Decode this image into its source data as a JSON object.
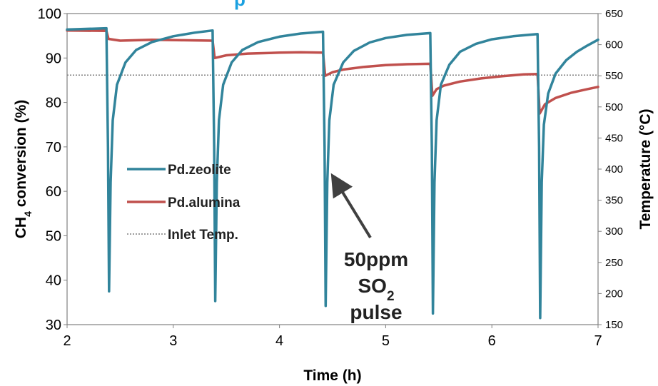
{
  "chart_data": {
    "type": "line",
    "title_fragment": "p",
    "xlabel": "Time (h)",
    "ylabel": {
      "prefix": "CH",
      "subscript": "4",
      "suffix": " conversion (%)"
    },
    "y2label": "Temperature (°C)",
    "xlim": [
      2,
      7
    ],
    "ylim": [
      30,
      100
    ],
    "y2lim": [
      150,
      650
    ],
    "xticks": [
      "2",
      "3",
      "4",
      "5",
      "6",
      "7"
    ],
    "yticks": [
      "30",
      "40",
      "50",
      "60",
      "70",
      "80",
      "90",
      "100"
    ],
    "y2ticks": [
      "150",
      "200",
      "250",
      "300",
      "350",
      "400",
      "450",
      "500",
      "550",
      "600",
      "650"
    ],
    "legend": {
      "position": "center-left"
    },
    "series": [
      {
        "name": "Pd.zeolite",
        "color": "#31849b",
        "style": "solid",
        "points": [
          [
            2.0,
            96.4
          ],
          [
            2.37,
            96.7
          ],
          [
            2.385,
            70
          ],
          [
            2.395,
            37.5
          ],
          [
            2.41,
            62
          ],
          [
            2.43,
            76
          ],
          [
            2.47,
            84
          ],
          [
            2.55,
            89
          ],
          [
            2.65,
            91.8
          ],
          [
            2.8,
            93.6
          ],
          [
            3.0,
            94.9
          ],
          [
            3.2,
            95.7
          ],
          [
            3.37,
            96.2
          ],
          [
            3.385,
            70
          ],
          [
            3.395,
            35.3
          ],
          [
            3.41,
            62
          ],
          [
            3.43,
            76
          ],
          [
            3.47,
            84
          ],
          [
            3.55,
            89
          ],
          [
            3.65,
            91.8
          ],
          [
            3.8,
            93.6
          ],
          [
            4.0,
            94.8
          ],
          [
            4.2,
            95.5
          ],
          [
            4.41,
            95.9
          ],
          [
            4.425,
            70
          ],
          [
            4.435,
            34.2
          ],
          [
            4.45,
            62
          ],
          [
            4.47,
            76
          ],
          [
            4.51,
            84
          ],
          [
            4.6,
            89
          ],
          [
            4.7,
            91.6
          ],
          [
            4.85,
            93.5
          ],
          [
            5.0,
            94.5
          ],
          [
            5.2,
            95.2
          ],
          [
            5.42,
            95.6
          ],
          [
            5.435,
            70
          ],
          [
            5.445,
            32.5
          ],
          [
            5.46,
            62
          ],
          [
            5.48,
            76
          ],
          [
            5.52,
            84
          ],
          [
            5.6,
            88.5
          ],
          [
            5.7,
            91.4
          ],
          [
            5.85,
            93.2
          ],
          [
            6.0,
            94.2
          ],
          [
            6.2,
            94.9
          ],
          [
            6.43,
            95.4
          ],
          [
            6.445,
            70
          ],
          [
            6.455,
            31.5
          ],
          [
            6.47,
            62
          ],
          [
            6.49,
            75
          ],
          [
            6.53,
            82
          ],
          [
            6.6,
            86.5
          ],
          [
            6.7,
            89.5
          ],
          [
            6.8,
            91.4
          ],
          [
            6.9,
            92.8
          ],
          [
            7.0,
            94.1
          ]
        ]
      },
      {
        "name": "Pd.alumina",
        "color": "#c0504d",
        "style": "solid",
        "points": [
          [
            2.0,
            96.2
          ],
          [
            2.37,
            96.1
          ],
          [
            2.39,
            94.3
          ],
          [
            2.5,
            93.9
          ],
          [
            2.8,
            94.1
          ],
          [
            3.1,
            94.0
          ],
          [
            3.37,
            93.9
          ],
          [
            3.39,
            90.0
          ],
          [
            3.5,
            90.6
          ],
          [
            3.7,
            91.0
          ],
          [
            4.0,
            91.2
          ],
          [
            4.2,
            91.3
          ],
          [
            4.41,
            91.2
          ],
          [
            4.43,
            86.0
          ],
          [
            4.5,
            86.8
          ],
          [
            4.6,
            87.4
          ],
          [
            4.8,
            88.0
          ],
          [
            5.0,
            88.4
          ],
          [
            5.2,
            88.6
          ],
          [
            5.42,
            88.7
          ],
          [
            5.44,
            81.5
          ],
          [
            5.48,
            83.0
          ],
          [
            5.55,
            83.8
          ],
          [
            5.7,
            84.7
          ],
          [
            5.9,
            85.4
          ],
          [
            6.1,
            85.9
          ],
          [
            6.3,
            86.3
          ],
          [
            6.43,
            86.4
          ],
          [
            6.45,
            77.5
          ],
          [
            6.5,
            79.6
          ],
          [
            6.6,
            81.0
          ],
          [
            6.75,
            82.2
          ],
          [
            6.9,
            83.0
          ],
          [
            7.0,
            83.5
          ]
        ]
      },
      {
        "name": "Inlet Temp.",
        "color": "#7f7f7f",
        "style": "dotted",
        "axis": "right",
        "points": [
          [
            2.0,
            551
          ],
          [
            7.0,
            551
          ]
        ]
      }
    ],
    "annotations": [
      {
        "lines": [
          "50ppm",
          "SO",
          "pulse"
        ],
        "subscript_on_line_2": "2",
        "arrow_points_to": [
          4.45,
          64
        ]
      }
    ]
  }
}
